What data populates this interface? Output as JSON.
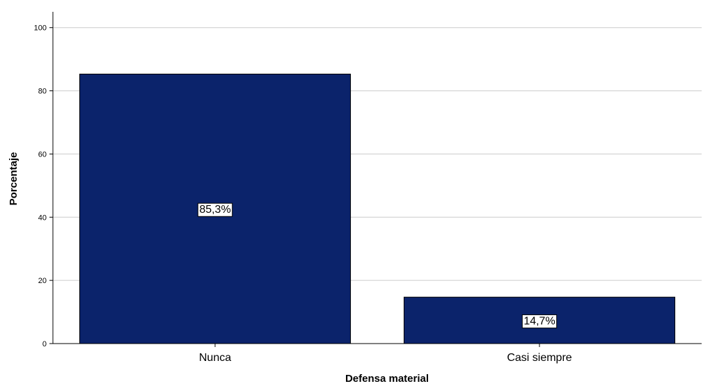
{
  "chart_data": {
    "type": "bar",
    "categories": [
      "Nunca",
      "Casi siempre"
    ],
    "values": [
      85.3,
      14.7
    ],
    "data_labels": [
      "85,3%",
      "14,7%"
    ],
    "xlabel": "Defensa material",
    "ylabel": "Porcentaje",
    "ylim": [
      0,
      105
    ],
    "yticks": [
      0,
      20,
      40,
      60,
      80,
      100
    ],
    "grid": true,
    "legend": "none",
    "colors": {
      "bar": "#0b236b",
      "bar_stroke": "#000000",
      "grid": "#cccccc",
      "axis": "#000000"
    }
  }
}
